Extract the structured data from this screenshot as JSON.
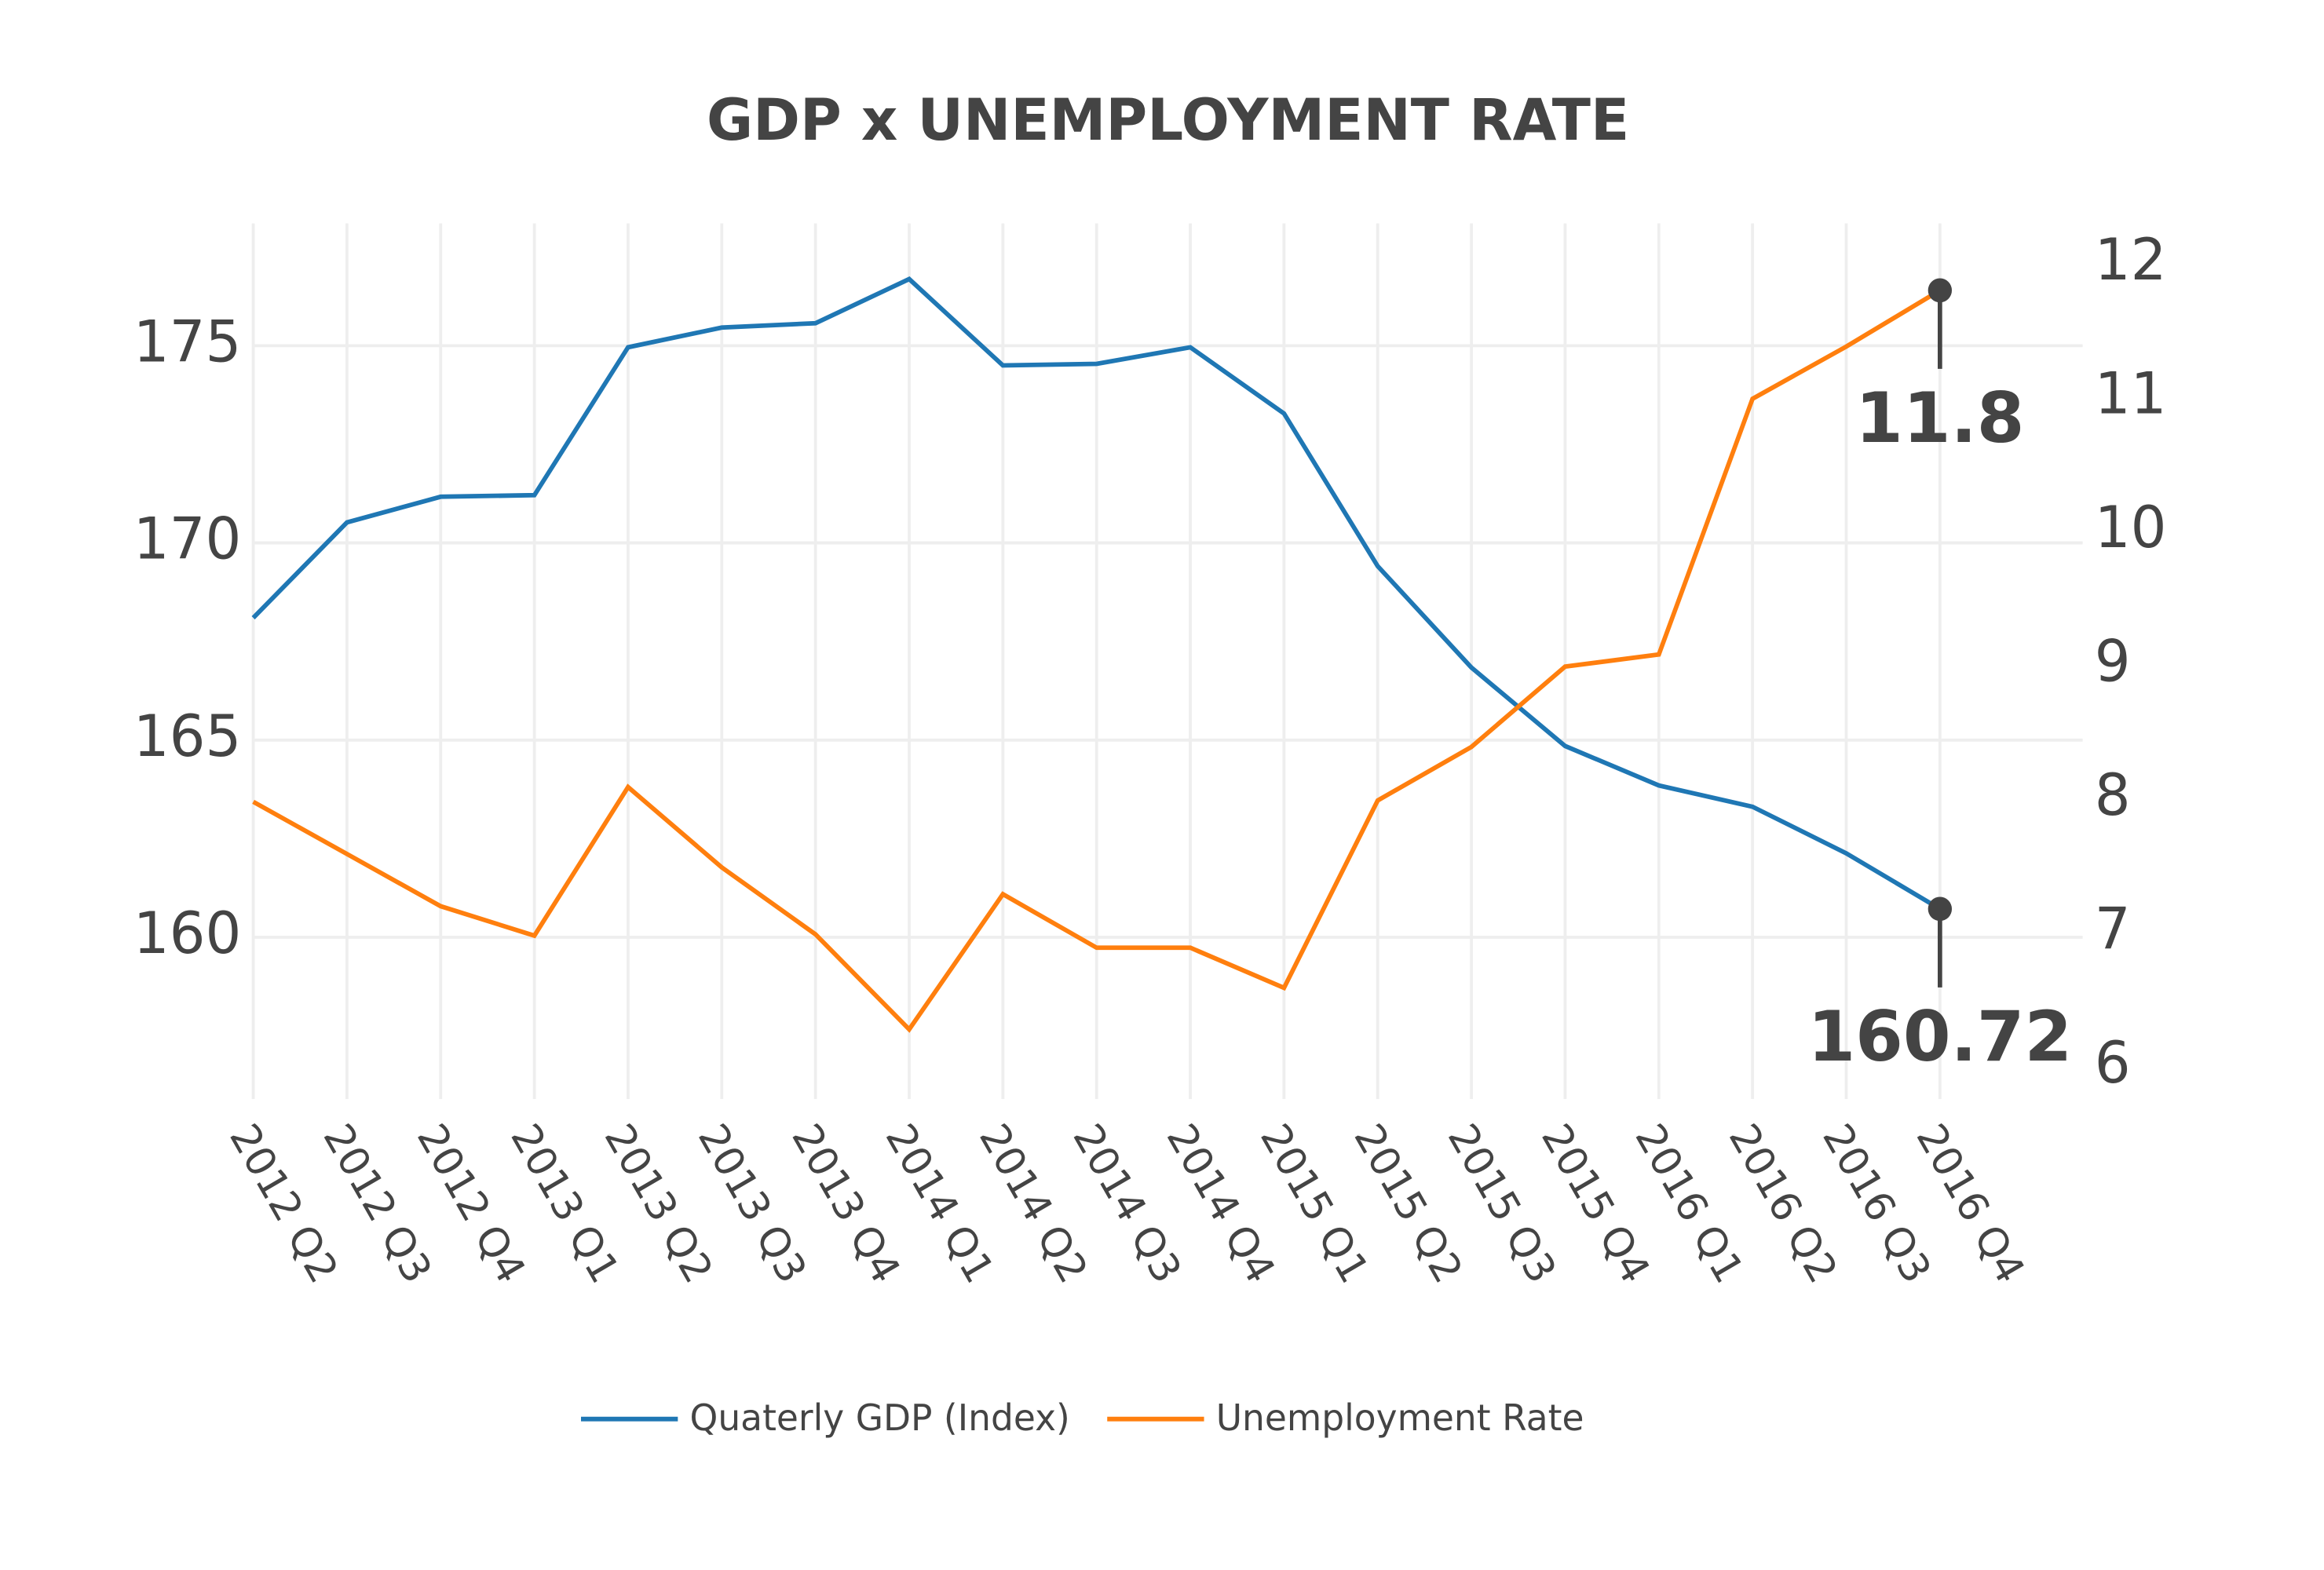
{
  "chart_data": {
    "type": "line",
    "title": "GDP x UNEMPLOYMENT RATE",
    "categories": [
      "2012 Q2",
      "2012 Q3",
      "2012 Q4",
      "2013 Q1",
      "2013 Q2",
      "2013 Q3",
      "2013 Q4",
      "2014 Q1",
      "2014 Q2",
      "2014 Q3",
      "2014 Q4",
      "2015 Q1",
      "2015 Q2",
      "2015 Q3",
      "2015 Q4",
      "2016 Q1",
      "2016 Q2",
      "2016 Q3",
      "2016 Q4"
    ],
    "series": [
      {
        "name": "Quaterly GDP (Index)",
        "color": "#1f77b4",
        "axis": "y",
        "values": [
          168.1,
          170.52,
          171.17,
          171.21,
          174.96,
          175.46,
          175.57,
          176.69,
          174.5,
          174.54,
          174.96,
          173.28,
          169.41,
          166.84,
          164.85,
          163.85,
          163.31,
          162.13,
          160.72
        ]
      },
      {
        "name": "Unemployment Rate",
        "color": "#ff7f0e",
        "axis": "y2",
        "values": [
          7.98,
          7.59,
          7.2,
          6.98,
          8.09,
          7.49,
          6.99,
          6.28,
          7.29,
          6.89,
          6.89,
          6.59,
          7.99,
          8.39,
          8.99,
          9.08,
          10.99,
          11.38,
          11.8
        ]
      }
    ],
    "ylim": [
      155.9,
      178.1
    ],
    "yticks": [
      160,
      165,
      170,
      175
    ],
    "y2lim": [
      5.76,
      12.3
    ],
    "y2ticks": [
      6,
      7,
      8,
      9,
      10,
      11,
      12
    ],
    "grid": true,
    "legend": "bottom",
    "annotations": [
      {
        "series": 1,
        "index": 18,
        "text": "11.8"
      },
      {
        "series": 0,
        "index": 18,
        "text": "160.72"
      }
    ]
  }
}
